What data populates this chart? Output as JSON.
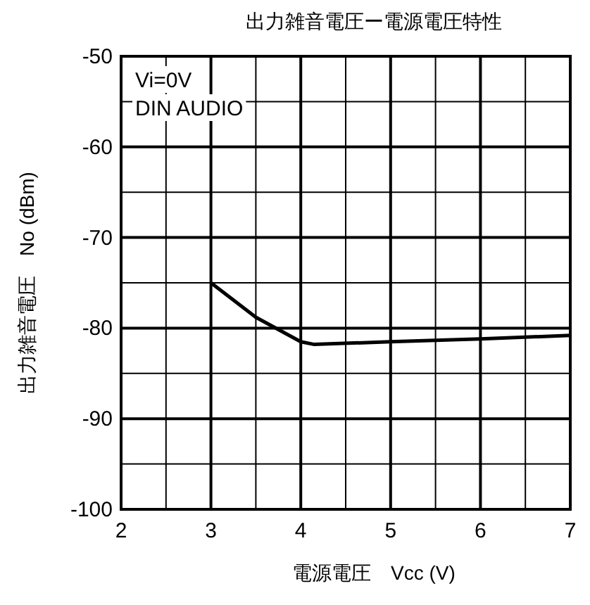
{
  "chart_data": {
    "type": "line",
    "title": "出力雑音電圧ー電源電圧特性",
    "xlabel": "電源電圧　Vcc (V)",
    "ylabel": "出力雑音電圧　No (dBm)",
    "x": [
      3,
      3.5,
      4,
      4.15,
      5,
      6,
      7
    ],
    "series": [
      {
        "color": "#000000",
        "values": [
          -75,
          -78.8,
          -81.5,
          -81.8,
          -81.5,
          -81.2,
          -80.8
        ]
      }
    ],
    "xlim": [
      2,
      7
    ],
    "ylim": [
      -100,
      -50
    ],
    "xticks": [
      2,
      {
        "value": 2.5,
        "label": null
      },
      3,
      {
        "value": 3.5,
        "label": null
      },
      4,
      {
        "value": 4.5,
        "label": null
      },
      5,
      {
        "value": 5.5,
        "label": null
      },
      6,
      {
        "value": 6.5,
        "label": null
      },
      7
    ],
    "yticks": [
      -100,
      {
        "value": -95,
        "label": null
      },
      -90,
      {
        "value": -85,
        "label": null
      },
      -80,
      {
        "value": -75,
        "label": null
      },
      -70,
      {
        "value": -65,
        "label": null
      },
      -60,
      {
        "value": -55,
        "label": null
      },
      -50
    ],
    "grid": true,
    "annotations": [
      "Vi=0V",
      "DIN AUDIO"
    ]
  }
}
